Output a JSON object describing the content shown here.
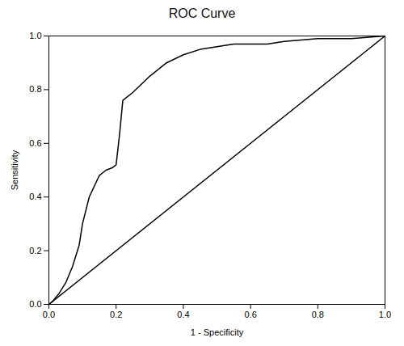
{
  "chart_data": {
    "type": "line",
    "title": "ROC Curve",
    "xlabel": "1 - Specificity",
    "ylabel": "Sensitivity",
    "xlim": [
      0.0,
      1.0
    ],
    "ylim": [
      0.0,
      1.0
    ],
    "xticks": [
      {
        "value": 0.0,
        "label": "0.0"
      },
      0.2,
      0.4,
      0.6,
      0.8,
      {
        "value": 1.0,
        "label": "1.0"
      }
    ],
    "yticks": [
      {
        "value": 0.0,
        "label": "0.0"
      },
      0.2,
      0.4,
      0.6,
      0.8,
      {
        "value": 1.0,
        "label": "1.0"
      }
    ],
    "grid": false,
    "series": [
      {
        "x": [
          0.0,
          1.0
        ],
        "values": [
          0.0,
          1.0
        ]
      },
      {
        "x": [
          0.0,
          0.01,
          0.03,
          0.05,
          0.07,
          0.09,
          0.1,
          0.12,
          0.15,
          0.17,
          0.19,
          0.2,
          0.21,
          0.22,
          0.25,
          0.3,
          0.35,
          0.4,
          0.45,
          0.5,
          0.55,
          0.6,
          0.65,
          0.7,
          0.8,
          0.9,
          1.0
        ],
        "values": [
          0.0,
          0.01,
          0.04,
          0.08,
          0.14,
          0.22,
          0.3,
          0.4,
          0.48,
          0.5,
          0.51,
          0.52,
          0.63,
          0.76,
          0.79,
          0.85,
          0.9,
          0.93,
          0.95,
          0.96,
          0.97,
          0.97,
          0.97,
          0.98,
          0.99,
          0.99,
          1.0
        ]
      }
    ]
  }
}
